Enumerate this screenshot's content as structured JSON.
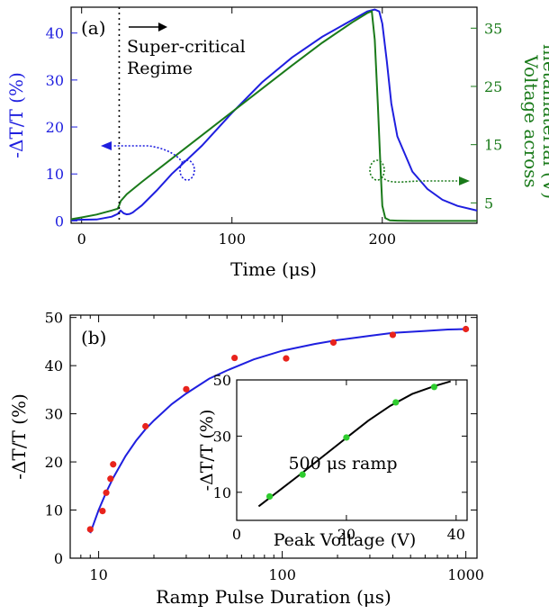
{
  "chart_data": [
    {
      "type": "line",
      "panel_label": "(a)",
      "xlabel": "Time (μs)",
      "ylabel_left": "-ΔT/T (%)",
      "ylabel_right": "Voltage across metamaterial (V)",
      "ylabel_right_lines": [
        "Voltage across",
        "metamaterial (V)"
      ],
      "xlim": [
        -7,
        263
      ],
      "ylim_left": [
        -0.5,
        45.5
      ],
      "ylim_right": [
        1.5,
        38.6
      ],
      "x_ticks": [
        0,
        100,
        200
      ],
      "y_ticks_left": [
        0,
        10,
        20,
        30,
        40
      ],
      "y_ticks_right": [
        5,
        15,
        25,
        35
      ],
      "annotation": [
        "Super-critical",
        "Regime"
      ],
      "threshold_x": 25,
      "colors": {
        "left_series": "#1f1fdf",
        "right_series": "#1a7a1a",
        "axis_left": "#1f1fdf",
        "axis_right": "#1a7a1a"
      },
      "series": [
        {
          "axis": "left",
          "x": [
            -7,
            10,
            20,
            24,
            26,
            28,
            30,
            32,
            34,
            36,
            40,
            50,
            60,
            70,
            80,
            100,
            120,
            140,
            160,
            180,
            190,
            195,
            198,
            200,
            203,
            206,
            210,
            220,
            230,
            240,
            250,
            263
          ],
          "y": [
            0.2,
            0.3,
            0.9,
            1.5,
            2.2,
            1.6,
            1.4,
            1.5,
            1.8,
            2.3,
            3.3,
            6.5,
            10.0,
            13.0,
            16.0,
            23.0,
            29.5,
            34.8,
            39.2,
            42.8,
            44.6,
            45.0,
            44.6,
            42.0,
            34.0,
            25.0,
            18.0,
            10.5,
            6.8,
            4.5,
            3.2,
            2.2
          ]
        },
        {
          "axis": "right",
          "x": [
            -7,
            0,
            10,
            20,
            24,
            25,
            26,
            30,
            40,
            60,
            80,
            100,
            120,
            140,
            160,
            180,
            190,
            193,
            195,
            197,
            199,
            200,
            202,
            205,
            210,
            220,
            240,
            263
          ],
          "y": [
            2.2,
            2.5,
            3.0,
            3.7,
            4.0,
            4.6,
            5.3,
            6.5,
            8.6,
            12.6,
            16.6,
            20.6,
            24.6,
            28.6,
            32.5,
            36.0,
            37.6,
            37.9,
            33.0,
            22.0,
            10.0,
            4.5,
            2.4,
            2.0,
            1.95,
            1.9,
            1.9,
            1.9
          ]
        }
      ]
    },
    {
      "type": "scatter",
      "panel_label": "(b)",
      "xlabel": "Ramp Pulse Duration (μs)",
      "ylabel": "-ΔT/T (%)",
      "x_scale": "log",
      "xlim": [
        7,
        1150
      ],
      "ylim": [
        0,
        50.5
      ],
      "x_ticks": [
        10,
        100,
        1000
      ],
      "y_ticks": [
        0,
        10,
        20,
        30,
        40,
        50
      ],
      "colors": {
        "points": "#e8231c",
        "fit": "#1f1fdf"
      },
      "series": [
        {
          "kind": "points",
          "x": [
            9,
            10.5,
            11,
            11.6,
            12,
            18,
            30,
            55,
            105,
            190,
            400,
            1000
          ],
          "y": [
            6.0,
            9.8,
            13.6,
            16.5,
            19.5,
            27.4,
            35.1,
            41.6,
            41.5,
            44.8,
            46.4,
            47.6
          ]
        },
        {
          "kind": "fit",
          "x": [
            9,
            10,
            11,
            12,
            14,
            16,
            18,
            20,
            25,
            30,
            40,
            50,
            70,
            100,
            150,
            200,
            300,
            400,
            600,
            800,
            1000
          ],
          "y": [
            5.2,
            10.0,
            13.7,
            16.7,
            21.2,
            24.4,
            26.8,
            28.6,
            32.0,
            34.2,
            37.3,
            39.0,
            41.3,
            43.1,
            44.5,
            45.3,
            46.2,
            46.8,
            47.2,
            47.5,
            47.6
          ]
        }
      ],
      "inset": {
        "type": "scatter",
        "xlabel": "Peak Voltage (V)",
        "ylabel": "-ΔT/T (%)",
        "annotation": "500 μs ramp",
        "xlim": [
          0,
          42
        ],
        "ylim": [
          0,
          50
        ],
        "x_ticks": [
          0,
          20,
          40
        ],
        "y_ticks": [
          10,
          30,
          50
        ],
        "colors": {
          "points": "#2ecc2e",
          "fit": "#000000"
        },
        "points": {
          "x": [
            6,
            12,
            20,
            29,
            36
          ],
          "y": [
            8.5,
            16.3,
            29.5,
            42.0,
            47.5
          ]
        },
        "fit": {
          "x": [
            4,
            8,
            12,
            16,
            20,
            24,
            28,
            32,
            36,
            39
          ],
          "y": [
            5.0,
            11.0,
            17.0,
            23.2,
            29.4,
            35.5,
            40.8,
            45.0,
            47.8,
            49.5
          ]
        }
      }
    }
  ]
}
